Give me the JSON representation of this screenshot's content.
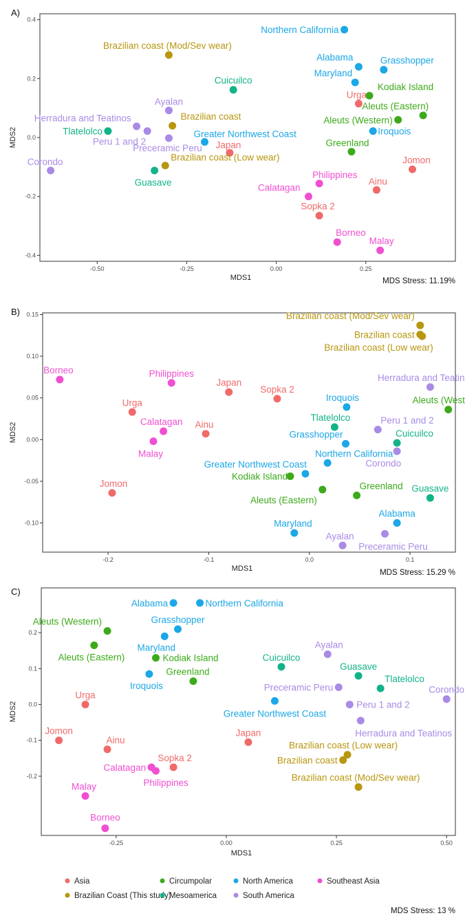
{
  "groups": [
    {
      "name": "Asia",
      "color": "#F06A6A"
    },
    {
      "name": "Brazilian Coast (This study)",
      "color": "#B8960F"
    },
    {
      "name": "Circumpolar",
      "color": "#3DAA1A"
    },
    {
      "name": "Mesoamerica",
      "color": "#12B389"
    },
    {
      "name": "North America",
      "color": "#1CA7E6"
    },
    {
      "name": "South America",
      "color": "#A98BE6"
    },
    {
      "name": "Southeast Asia",
      "color": "#F04FD2"
    }
  ],
  "legend": {
    "position": "bottom",
    "entries": [
      "Asia",
      "Brazilian Coast (This study)",
      "Circumpolar",
      "Mesoamerica",
      "North America",
      "South America",
      "Southeast Asia"
    ]
  },
  "chart_data": [
    {
      "type": "scatter",
      "panel": "A)",
      "xlabel": "MDS1",
      "ylabel": "MDS2",
      "xlim": [
        -0.66,
        0.5
      ],
      "ylim": [
        -0.42,
        0.42
      ],
      "xticks": [
        {
          "v": -0.5,
          "label": "-0.50"
        },
        {
          "v": -0.25,
          "label": "-0.25"
        },
        {
          "v": 0,
          "label": "0.00"
        },
        {
          "v": 0.25,
          "label": "0.25"
        }
      ],
      "yticks": [
        {
          "v": -0.4,
          "label": "-0.4"
        },
        {
          "v": -0.2,
          "label": "-0.2"
        },
        {
          "v": 0,
          "label": "0.0"
        },
        {
          "v": 0.2,
          "label": "0.2"
        },
        {
          "v": 0.4,
          "label": "0.4"
        }
      ],
      "stress": "MDS Stress: 11.19%",
      "grid": false,
      "points": [
        {
          "label": "Northern California",
          "group": "North America",
          "x": 0.19,
          "y": 0.366
        },
        {
          "label": "Brazilian coast (Mod/Sev wear)",
          "group": "Brazilian Coast (This study)",
          "x": -0.3,
          "y": 0.28
        },
        {
          "label": "Alabama",
          "group": "North America",
          "x": 0.23,
          "y": 0.24
        },
        {
          "label": "Grasshopper",
          "group": "North America",
          "x": 0.3,
          "y": 0.23
        },
        {
          "label": "Maryland",
          "group": "North America",
          "x": 0.22,
          "y": 0.187
        },
        {
          "label": "Cuicuilco",
          "group": "Mesoamerica",
          "x": -0.12,
          "y": 0.162
        },
        {
          "label": "Kodiak Island",
          "group": "Circumpolar",
          "x": 0.26,
          "y": 0.142
        },
        {
          "label": "Urga",
          "group": "Asia",
          "x": 0.23,
          "y": 0.115
        },
        {
          "label": "Ayalan",
          "group": "South America",
          "x": -0.3,
          "y": 0.092
        },
        {
          "label": "Aleuts (Eastern)",
          "group": "Circumpolar",
          "x": 0.41,
          "y": 0.075
        },
        {
          "label": "Herradura and Teatinos",
          "group": "South America",
          "x": -0.39,
          "y": 0.038
        },
        {
          "label": "Brazilian coast",
          "group": "Brazilian Coast (This study)",
          "x": -0.29,
          "y": 0.04
        },
        {
          "label": "Aleuts (Western)",
          "group": "Circumpolar",
          "x": 0.34,
          "y": 0.06
        },
        {
          "label": "Tlatelolco",
          "group": "Mesoamerica",
          "x": -0.47,
          "y": 0.022
        },
        {
          "label": "Peru 1 and 2",
          "group": "South America",
          "x": -0.36,
          "y": 0.022
        },
        {
          "label": "Iroquois",
          "group": "North America",
          "x": 0.27,
          "y": 0.022
        },
        {
          "label": "Greater Northwest Coast",
          "group": "North America",
          "x": -0.2,
          "y": -0.015
        },
        {
          "label": "Preceramic Peru",
          "group": "South America",
          "x": -0.3,
          "y": -0.002
        },
        {
          "label": "Japan",
          "group": "Asia",
          "x": -0.13,
          "y": -0.052
        },
        {
          "label": "Greenland",
          "group": "Circumpolar",
          "x": 0.21,
          "y": -0.048
        },
        {
          "label": "Corondo",
          "group": "South America",
          "x": -0.63,
          "y": -0.112
        },
        {
          "label": "Brazilian coast (Low wear)",
          "group": "Brazilian Coast (This study)",
          "x": -0.31,
          "y": -0.095
        },
        {
          "label": "Guasave",
          "group": "Mesoamerica",
          "x": -0.34,
          "y": -0.112
        },
        {
          "label": "Jomon",
          "group": "Asia",
          "x": 0.38,
          "y": -0.108
        },
        {
          "label": "Philippines",
          "group": "Southeast Asia",
          "x": 0.12,
          "y": -0.156
        },
        {
          "label": "Ainu",
          "group": "Asia",
          "x": 0.28,
          "y": -0.178
        },
        {
          "label": "Calatagan",
          "group": "Southeast Asia",
          "x": 0.09,
          "y": -0.2
        },
        {
          "label": "Sopka 2",
          "group": "Asia",
          "x": 0.12,
          "y": -0.265
        },
        {
          "label": "Borneo",
          "group": "Southeast Asia",
          "x": 0.17,
          "y": -0.355
        },
        {
          "label": "Malay",
          "group": "Southeast Asia",
          "x": 0.29,
          "y": -0.383
        }
      ]
    },
    {
      "type": "scatter",
      "panel": "B)",
      "xlabel": "MDS1",
      "ylabel": "MDS2",
      "xlim": [
        -0.265,
        0.145
      ],
      "ylim": [
        -0.135,
        0.152
      ],
      "xticks": [
        {
          "v": -0.2,
          "label": "-0.2"
        },
        {
          "v": -0.1,
          "label": "-0.1"
        },
        {
          "v": 0,
          "label": "0.0"
        },
        {
          "v": 0.1,
          "label": "0.1"
        }
      ],
      "yticks": [
        {
          "v": -0.1,
          "label": "-0.10"
        },
        {
          "v": -0.05,
          "label": "-0.05"
        },
        {
          "v": 0,
          "label": "0.00"
        },
        {
          "v": 0.05,
          "label": "0.05"
        },
        {
          "v": 0.1,
          "label": "0.10"
        },
        {
          "v": 0.15,
          "label": "0.15"
        }
      ],
      "stress": "MDS Stress: 15.29 %",
      "grid": false,
      "points": [
        {
          "label": "Brazilian coast (Mod/Sev wear)",
          "group": "Brazilian Coast (This study)",
          "x": 0.11,
          "y": 0.137
        },
        {
          "label": "Brazilian coast",
          "group": "Brazilian Coast (This study)",
          "x": 0.11,
          "y": 0.126
        },
        {
          "label": "Brazilian coast (Low wear)",
          "group": "Brazilian Coast (This study)",
          "x": 0.112,
          "y": 0.124
        },
        {
          "label": "Borneo",
          "group": "Southeast Asia",
          "x": -0.248,
          "y": 0.072
        },
        {
          "label": "Philippines",
          "group": "Southeast Asia",
          "x": -0.137,
          "y": 0.068
        },
        {
          "label": "Japan",
          "group": "Asia",
          "x": -0.08,
          "y": 0.057
        },
        {
          "label": "Sopka 2",
          "group": "Asia",
          "x": -0.032,
          "y": 0.049
        },
        {
          "label": "Herradura and Teatinos",
          "group": "South America",
          "x": 0.12,
          "y": 0.063
        },
        {
          "label": "Iroquois",
          "group": "North America",
          "x": 0.037,
          "y": 0.039
        },
        {
          "label": "Aleuts (Western)",
          "group": "Circumpolar",
          "x": 0.138,
          "y": 0.036
        },
        {
          "label": "Urga",
          "group": "Asia",
          "x": -0.176,
          "y": 0.033
        },
        {
          "label": "Tlatelolco",
          "group": "Mesoamerica",
          "x": 0.025,
          "y": 0.015
        },
        {
          "label": "Peru 1 and 2",
          "group": "South America",
          "x": 0.068,
          "y": 0.012
        },
        {
          "label": "Calatagan",
          "group": "Southeast Asia",
          "x": -0.145,
          "y": 0.01
        },
        {
          "label": "Ainu",
          "group": "Asia",
          "x": -0.103,
          "y": 0.007
        },
        {
          "label": "Malay",
          "group": "Southeast Asia",
          "x": -0.155,
          "y": -0.002
        },
        {
          "label": "Grasshopper",
          "group": "North America",
          "x": 0.036,
          "y": -0.005
        },
        {
          "label": "Cuicuilco",
          "group": "Mesoamerica",
          "x": 0.087,
          "y": -0.004
        },
        {
          "label": "Corondo",
          "group": "South America",
          "x": 0.087,
          "y": -0.014
        },
        {
          "label": "Northern California",
          "group": "North America",
          "x": 0.018,
          "y": -0.028
        },
        {
          "label": "Greater Northwest Coast",
          "group": "North America",
          "x": -0.004,
          "y": -0.041
        },
        {
          "label": "Kodiak Island",
          "group": "Circumpolar",
          "x": -0.019,
          "y": -0.044
        },
        {
          "label": "Aleuts (Eastern)",
          "group": "Circumpolar",
          "x": 0.013,
          "y": -0.06
        },
        {
          "label": "Jomon",
          "group": "Asia",
          "x": -0.196,
          "y": -0.064
        },
        {
          "label": "Greenland",
          "group": "Circumpolar",
          "x": 0.047,
          "y": -0.067
        },
        {
          "label": "Guasave",
          "group": "Mesoamerica",
          "x": 0.12,
          "y": -0.07
        },
        {
          "label": "Alabama",
          "group": "North America",
          "x": 0.087,
          "y": -0.1
        },
        {
          "label": "Maryland",
          "group": "North America",
          "x": -0.015,
          "y": -0.112
        },
        {
          "label": "Preceramic Peru",
          "group": "South America",
          "x": 0.075,
          "y": -0.113
        },
        {
          "label": "Ayalan",
          "group": "South America",
          "x": 0.033,
          "y": -0.127
        }
      ]
    },
    {
      "type": "scatter",
      "panel": "C)",
      "xlabel": "MDS1",
      "ylabel": "MDS2",
      "xlim": [
        -0.42,
        0.52
      ],
      "ylim": [
        -0.365,
        0.325
      ],
      "xticks": [
        {
          "v": -0.25,
          "label": "-0.25"
        },
        {
          "v": 0,
          "label": "0.00"
        },
        {
          "v": 0.25,
          "label": "0.25"
        },
        {
          "v": 0.5,
          "label": "0.50"
        }
      ],
      "yticks": [
        {
          "v": -0.2,
          "label": "-0.2"
        },
        {
          "v": -0.1,
          "label": "-0.1"
        },
        {
          "v": 0,
          "label": "0.0"
        },
        {
          "v": 0.1,
          "label": "0.1"
        },
        {
          "v": 0.2,
          "label": "0.2"
        }
      ],
      "stress": "MDS Stress: 13 %",
      "grid": false,
      "points": [
        {
          "label": "Alabama",
          "group": "North America",
          "x": -0.12,
          "y": 0.283
        },
        {
          "label": "Northern California",
          "group": "North America",
          "x": -0.06,
          "y": 0.283
        },
        {
          "label": "Grasshopper",
          "group": "North America",
          "x": -0.11,
          "y": 0.21
        },
        {
          "label": "Aleuts (Western)",
          "group": "Circumpolar",
          "x": -0.27,
          "y": 0.205
        },
        {
          "label": "Maryland",
          "group": "North America",
          "x": -0.14,
          "y": 0.19
        },
        {
          "label": "Aleuts (Eastern)",
          "group": "Circumpolar",
          "x": -0.3,
          "y": 0.165
        },
        {
          "label": "Kodiak Island",
          "group": "Circumpolar",
          "x": -0.16,
          "y": 0.13
        },
        {
          "label": "Ayalan",
          "group": "South America",
          "x": 0.23,
          "y": 0.14
        },
        {
          "label": "Cuicuilco",
          "group": "Mesoamerica",
          "x": 0.125,
          "y": 0.105
        },
        {
          "label": "Guasave",
          "group": "Mesoamerica",
          "x": 0.3,
          "y": 0.08
        },
        {
          "label": "Iroquois",
          "group": "North America",
          "x": -0.175,
          "y": 0.085
        },
        {
          "label": "Greenland",
          "group": "Circumpolar",
          "x": -0.075,
          "y": 0.065
        },
        {
          "label": "Preceramic Peru",
          "group": "South America",
          "x": 0.255,
          "y": 0.048
        },
        {
          "label": "Tlatelolco",
          "group": "Mesoamerica",
          "x": 0.35,
          "y": 0.045
        },
        {
          "label": "Corondo",
          "group": "South America",
          "x": 0.5,
          "y": 0.015
        },
        {
          "label": "Greater Northwest Coast",
          "group": "North America",
          "x": 0.11,
          "y": 0.01
        },
        {
          "label": "Urga",
          "group": "Asia",
          "x": -0.32,
          "y": 0.0
        },
        {
          "label": "Peru 1 and 2",
          "group": "South America",
          "x": 0.28,
          "y": 0.0
        },
        {
          "label": "Herradura and Teatinos",
          "group": "South America",
          "x": 0.305,
          "y": -0.045
        },
        {
          "label": "Jomon",
          "group": "Asia",
          "x": -0.38,
          "y": -0.1
        },
        {
          "label": "Japan",
          "group": "Asia",
          "x": 0.05,
          "y": -0.105
        },
        {
          "label": "Ainu",
          "group": "Asia",
          "x": -0.27,
          "y": -0.125
        },
        {
          "label": "Brazilian coast (Low wear)",
          "group": "Brazilian Coast (This study)",
          "x": 0.275,
          "y": -0.14
        },
        {
          "label": "Brazilian coast",
          "group": "Brazilian Coast (This study)",
          "x": 0.265,
          "y": -0.155
        },
        {
          "label": "Calatagan",
          "group": "Southeast Asia",
          "x": -0.17,
          "y": -0.175
        },
        {
          "label": "Sopka 2",
          "group": "Asia",
          "x": -0.12,
          "y": -0.175
        },
        {
          "label": "Philippines",
          "group": "Southeast Asia",
          "x": -0.16,
          "y": -0.185
        },
        {
          "label": "Brazilian coast (Mod/Sev wear)",
          "group": "Brazilian Coast (This study)",
          "x": 0.3,
          "y": -0.23
        },
        {
          "label": "Malay",
          "group": "Southeast Asia",
          "x": -0.32,
          "y": -0.255
        },
        {
          "label": "Borneo",
          "group": "Southeast Asia",
          "x": -0.275,
          "y": -0.345
        }
      ]
    }
  ]
}
